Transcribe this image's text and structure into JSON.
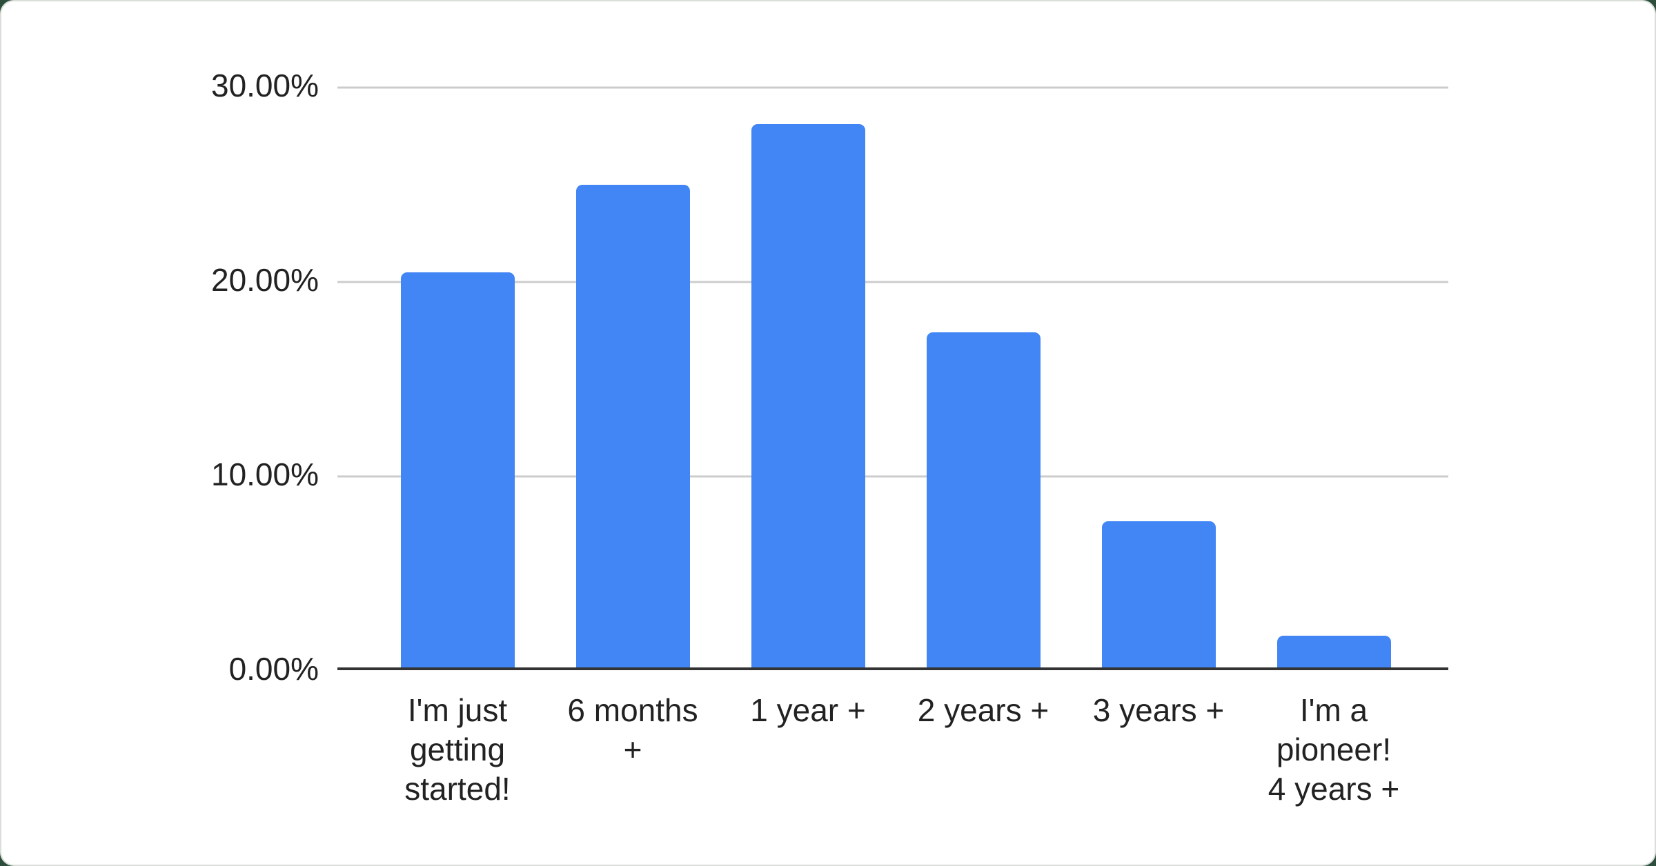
{
  "page": {
    "background_color": "#2d4e3c",
    "card_color": "#ffffff",
    "card_border_color": "#d9ded9"
  },
  "chart_data": {
    "type": "bar",
    "title": "",
    "xlabel": "",
    "ylabel": "",
    "categories": [
      "I'm just getting started!",
      "6 months +",
      "1 year +",
      "2 years +",
      "3 years +",
      "I'm a pioneer! 4 years +"
    ],
    "labels_wrapped": [
      "I'm just\ngetting\nstarted!",
      "6 months\n+",
      "1 year +",
      "2 years +",
      "3 years +",
      "I'm a\npioneer!\n4 years +"
    ],
    "values": [
      20.4,
      24.9,
      28.0,
      17.3,
      7.6,
      1.7
    ],
    "unit": "%",
    "y_ticks": [
      {
        "value": 0,
        "label": "0.00%"
      },
      {
        "value": 10,
        "label": "10.00%"
      },
      {
        "value": 20,
        "label": "20.00%"
      },
      {
        "value": 30,
        "label": "30.00%"
      }
    ],
    "ylim": [
      0,
      30
    ],
    "grid": true,
    "legend": "none",
    "bar_color": "#4285f4",
    "gridline_color": "#cccccc",
    "axis_line_color": "#333333",
    "text_color": "#222222"
  }
}
